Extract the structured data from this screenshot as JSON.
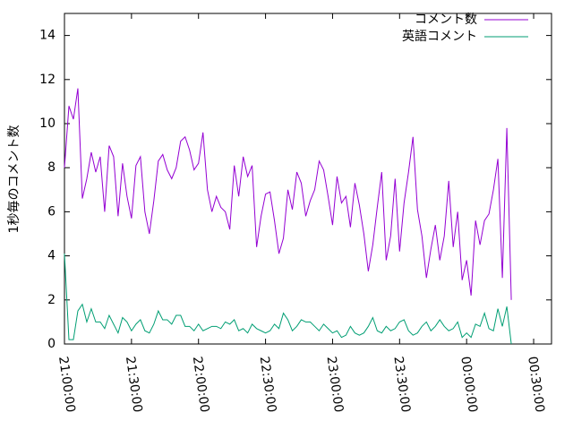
{
  "chart_data": {
    "type": "line",
    "ylabel": "1秒毎のコメント数",
    "x": [
      0,
      2,
      4,
      6,
      8,
      10,
      12,
      14,
      16,
      18,
      20,
      22,
      24,
      26,
      28,
      30,
      32,
      34,
      36,
      38,
      40,
      42,
      44,
      46,
      48,
      50,
      52,
      54,
      56,
      58,
      60,
      62,
      64,
      66,
      68,
      70,
      72,
      74,
      76,
      78,
      80,
      82,
      84,
      86,
      88,
      90,
      92,
      94,
      96,
      98,
      100,
      102,
      104,
      106,
      108,
      110,
      112,
      114,
      116,
      118,
      120,
      122,
      124,
      126,
      128,
      130,
      132,
      134,
      136,
      138,
      140,
      142,
      144,
      146,
      148,
      150,
      152,
      154,
      156,
      158,
      160,
      162,
      164,
      166,
      168,
      170,
      172,
      174,
      176,
      178,
      180,
      182,
      184,
      186,
      188,
      190,
      192,
      194,
      196,
      198,
      200
    ],
    "series": [
      {
        "name": "コメント数",
        "color": "#9400d3",
        "values": [
          8.0,
          10.8,
          10.2,
          11.6,
          6.6,
          7.5,
          8.7,
          7.8,
          8.5,
          6.0,
          9.0,
          8.5,
          5.8,
          8.2,
          6.7,
          5.7,
          8.1,
          8.5,
          6.0,
          5.0,
          6.5,
          8.3,
          8.6,
          7.9,
          7.5,
          8.0,
          9.2,
          9.4,
          8.8,
          7.9,
          8.2,
          9.6,
          7.0,
          6.0,
          6.7,
          6.2,
          6.0,
          5.2,
          8.1,
          6.7,
          8.5,
          7.6,
          8.1,
          4.4,
          5.8,
          6.8,
          6.9,
          5.6,
          4.1,
          4.8,
          7.0,
          6.1,
          7.8,
          7.3,
          5.8,
          6.5,
          7.0,
          8.3,
          7.9,
          6.7,
          5.4,
          7.6,
          6.4,
          6.7,
          5.3,
          7.3,
          6.3,
          5.0,
          3.3,
          4.5,
          6.2,
          7.8,
          3.8,
          4.9,
          7.5,
          4.2,
          6.4,
          7.8,
          9.4,
          6.1,
          4.9,
          3.0,
          4.3,
          5.4,
          3.8,
          4.9,
          7.4,
          4.4,
          6.0,
          2.9,
          3.8,
          2.2,
          5.6,
          4.5,
          5.6,
          5.9,
          7.0,
          8.4,
          3.0,
          9.8,
          2.0
        ]
      },
      {
        "name": "英語コメント",
        "color": "#009e73",
        "values": [
          4.1,
          0.2,
          0.2,
          1.5,
          1.8,
          1.0,
          1.6,
          1.0,
          1.0,
          0.7,
          1.3,
          0.9,
          0.5,
          1.2,
          1.0,
          0.6,
          0.9,
          1.1,
          0.6,
          0.5,
          0.9,
          1.5,
          1.1,
          1.1,
          0.9,
          1.3,
          1.3,
          0.8,
          0.8,
          0.6,
          0.9,
          0.6,
          0.7,
          0.8,
          0.8,
          0.7,
          1.0,
          0.9,
          1.1,
          0.6,
          0.7,
          0.5,
          0.9,
          0.7,
          0.6,
          0.5,
          0.6,
          0.9,
          0.7,
          1.4,
          1.1,
          0.6,
          0.8,
          1.1,
          1.0,
          1.0,
          0.8,
          0.6,
          0.9,
          0.7,
          0.5,
          0.6,
          0.3,
          0.4,
          0.8,
          0.5,
          0.4,
          0.5,
          0.8,
          1.2,
          0.6,
          0.5,
          0.8,
          0.6,
          0.7,
          1.0,
          1.1,
          0.6,
          0.4,
          0.5,
          0.8,
          1.0,
          0.6,
          0.8,
          1.1,
          0.8,
          0.6,
          0.7,
          1.0,
          0.3,
          0.5,
          0.3,
          0.9,
          0.8,
          1.4,
          0.7,
          0.6,
          1.6,
          0.8,
          1.7,
          0.0
        ]
      }
    ],
    "xlim": [
      0,
      218
    ],
    "xticks": [
      {
        "value": 0,
        "label": "21:00:00"
      },
      {
        "value": 30,
        "label": "21:30:00"
      },
      {
        "value": 60,
        "label": "22:00:00"
      },
      {
        "value": 90,
        "label": "22:30:00"
      },
      {
        "value": 120,
        "label": "23:00:00"
      },
      {
        "value": 150,
        "label": "23:30:00"
      },
      {
        "value": 180,
        "label": "00:00:00"
      },
      {
        "value": 210,
        "label": "00:30:00"
      }
    ],
    "ylim": [
      0,
      15
    ],
    "yticks": [
      0,
      2,
      4,
      6,
      8,
      10,
      12,
      14
    ],
    "grid": false,
    "legend": "top-right"
  }
}
